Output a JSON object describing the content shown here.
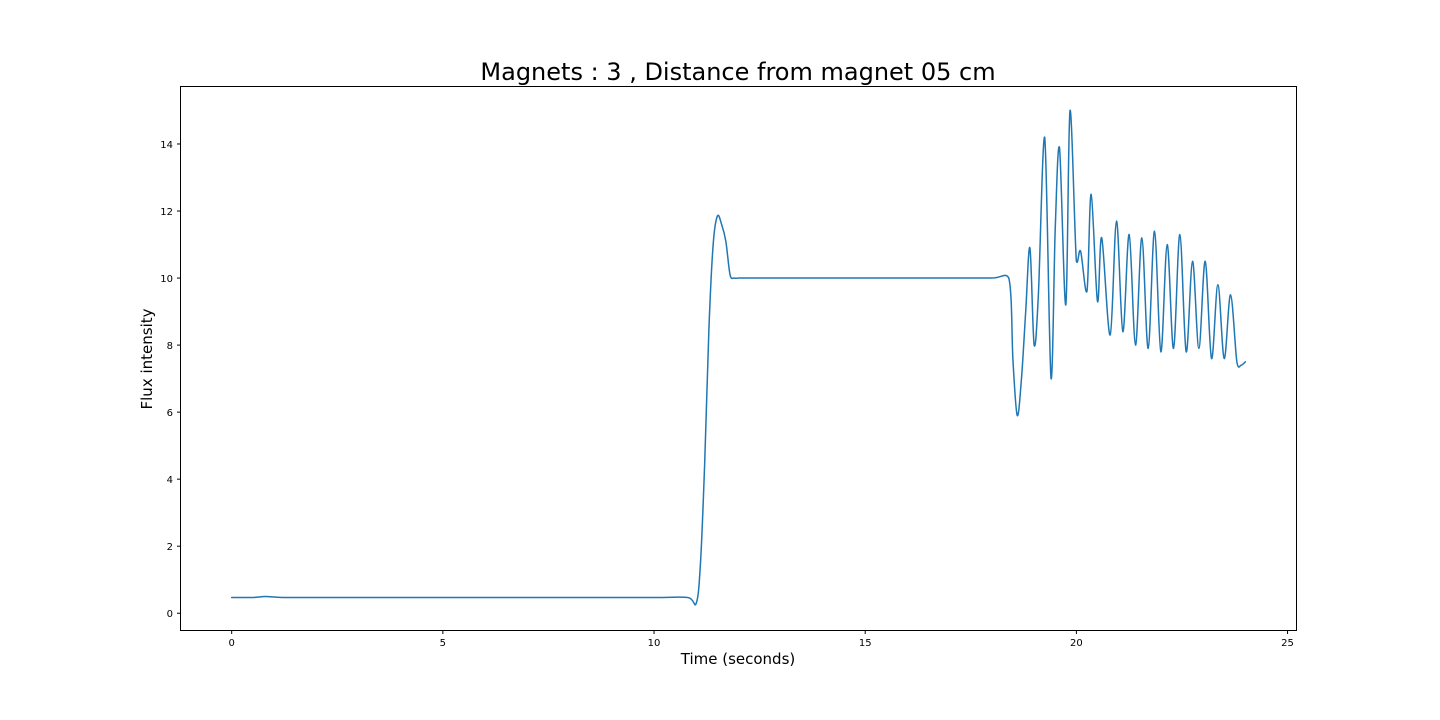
{
  "chart_data": {
    "type": "line",
    "title": "Magnets : 3 , Distance from magnet 05 cm",
    "xlabel": "Time (seconds)",
    "ylabel": "Flux intensity",
    "xlim": [
      -1.2,
      25.2
    ],
    "ylim": [
      -0.5,
      15.7
    ],
    "x_ticks": [
      0,
      5,
      10,
      15,
      20,
      25
    ],
    "y_ticks": [
      0,
      2,
      4,
      6,
      8,
      10,
      12,
      14
    ],
    "x_tick_labels": [
      "0",
      "5",
      "10",
      "15",
      "20",
      "25"
    ],
    "y_tick_labels": [
      "0",
      "2",
      "4",
      "6",
      "8",
      "10",
      "12",
      "14"
    ],
    "grid": false,
    "legend": "none",
    "color": "#1f77b4",
    "series": [
      {
        "x": [
          0.0,
          0.5,
          0.8,
          1.2,
          2.0,
          4.0,
          6.0,
          8.0,
          10.0,
          10.8,
          11.0,
          11.1,
          11.2,
          11.3,
          11.4,
          11.5,
          11.6,
          11.7,
          11.8,
          11.9,
          12.0,
          12.1,
          13.0,
          15.0,
          17.0,
          18.0,
          18.4,
          18.5,
          18.6,
          18.7,
          18.8,
          18.9,
          19.0,
          19.1,
          19.25,
          19.4,
          19.5,
          19.6,
          19.75,
          19.85,
          20.0,
          20.1,
          20.25,
          20.35,
          20.5,
          20.6,
          20.8,
          20.95,
          21.1,
          21.25,
          21.4,
          21.55,
          21.7,
          21.85,
          22.0,
          22.15,
          22.3,
          22.45,
          22.6,
          22.75,
          22.9,
          23.05,
          23.2,
          23.35,
          23.5,
          23.65,
          23.8,
          23.9,
          24.0
        ],
        "y": [
          0.47,
          0.47,
          0.5,
          0.47,
          0.47,
          0.47,
          0.47,
          0.47,
          0.47,
          0.47,
          0.3,
          1.5,
          4.5,
          8.5,
          11.0,
          11.85,
          11.6,
          11.1,
          10.1,
          10.0,
          10.0,
          10.0,
          10.0,
          10.0,
          10.0,
          10.0,
          10.0,
          7.5,
          5.9,
          7.0,
          9.0,
          10.9,
          8.0,
          9.5,
          14.2,
          7.0,
          11.5,
          13.9,
          9.2,
          15.0,
          10.5,
          10.8,
          9.6,
          12.5,
          9.3,
          11.2,
          8.3,
          11.7,
          8.4,
          11.3,
          8.0,
          11.2,
          7.9,
          11.4,
          7.8,
          11.0,
          7.9,
          11.3,
          7.8,
          10.5,
          7.9,
          10.5,
          7.6,
          9.8,
          7.6,
          9.5,
          7.5,
          7.4,
          7.5
        ]
      }
    ]
  }
}
